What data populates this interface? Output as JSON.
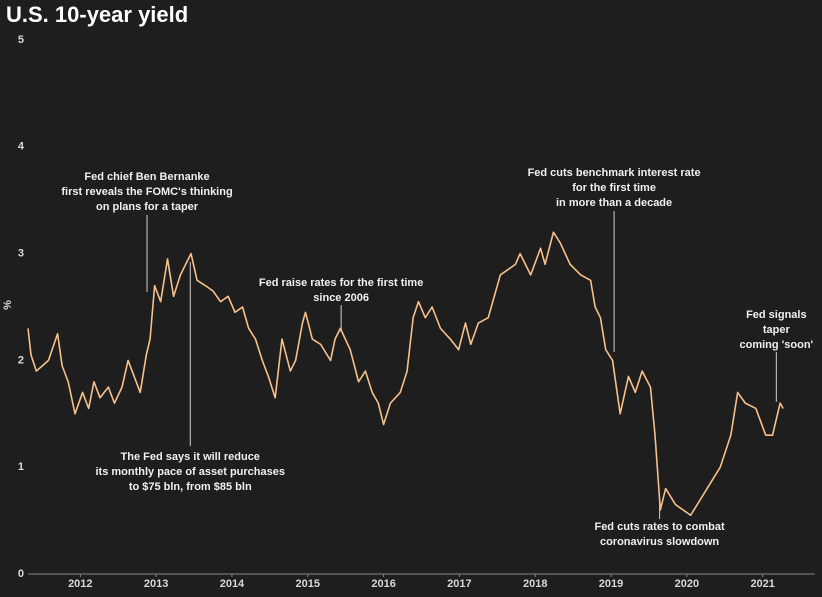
{
  "chart_data": {
    "type": "line",
    "title": "U.S. 10-year yield",
    "y_label": "%",
    "xlim": [
      2011.31,
      2021.69
    ],
    "xticks": [
      2012,
      2013,
      2014,
      2015,
      2016,
      2017,
      2018,
      2019,
      2020,
      2021
    ],
    "ylim": [
      0,
      5
    ],
    "yticks": [
      0,
      1,
      2,
      3,
      4,
      5
    ],
    "grid": false,
    "series": [
      {
        "name": "U.S. 10-year yield",
        "color": "#f7c08a",
        "x": [
          2011.31,
          2011.35,
          2011.42,
          2011.5,
          2011.58,
          2011.7,
          2011.76,
          2011.84,
          2011.93,
          2012.03,
          2012.11,
          2012.18,
          2012.26,
          2012.37,
          2012.45,
          2012.55,
          2012.63,
          2012.71,
          2012.79,
          2012.87,
          2012.92,
          2012.98,
          2013.06,
          2013.15,
          2013.23,
          2013.32,
          2013.39,
          2013.46,
          2013.54,
          2013.65,
          2013.75,
          2013.85,
          2013.95,
          2014.04,
          2014.14,
          2014.22,
          2014.31,
          2014.4,
          2014.48,
          2014.57,
          2014.66,
          2014.77,
          2014.84,
          2014.93,
          2014.97,
          2015.06,
          2015.17,
          2015.3,
          2015.36,
          2015.43,
          2015.56,
          2015.67,
          2015.76,
          2015.85,
          2015.93,
          2016.0,
          2016.09,
          2016.22,
          2016.31,
          2016.39,
          2016.46,
          2016.55,
          2016.64,
          2016.75,
          2016.88,
          2016.99,
          2017.08,
          2017.15,
          2017.25,
          2017.38,
          2017.54,
          2017.74,
          2017.8,
          2017.94,
          2018.07,
          2018.13,
          2018.24,
          2018.33,
          2018.46,
          2018.6,
          2018.73,
          2018.79,
          2018.86,
          2018.93,
          2019.02,
          2019.12,
          2019.23,
          2019.32,
          2019.41,
          2019.52,
          2019.58,
          2019.65,
          2019.72,
          2019.85,
          2020.05,
          2020.18,
          2020.31,
          2020.44,
          2020.58,
          2020.67,
          2020.77,
          2020.91,
          2021.04,
          2021.13,
          2021.23,
          2021.27
        ],
        "values": [
          2.3,
          2.05,
          1.9,
          1.95,
          2.0,
          2.25,
          1.95,
          1.8,
          1.5,
          1.7,
          1.55,
          1.8,
          1.65,
          1.75,
          1.6,
          1.75,
          2.0,
          1.85,
          1.7,
          2.05,
          2.2,
          2.7,
          2.55,
          2.95,
          2.6,
          2.8,
          2.9,
          3.0,
          2.75,
          2.7,
          2.65,
          2.55,
          2.6,
          2.45,
          2.5,
          2.3,
          2.2,
          2.0,
          1.85,
          1.65,
          2.2,
          1.9,
          2.0,
          2.35,
          2.45,
          2.2,
          2.15,
          2.0,
          2.2,
          2.3,
          2.1,
          1.8,
          1.9,
          1.7,
          1.6,
          1.4,
          1.6,
          1.7,
          1.9,
          2.4,
          2.55,
          2.4,
          2.5,
          2.3,
          2.2,
          2.1,
          2.35,
          2.15,
          2.35,
          2.4,
          2.8,
          2.9,
          3.0,
          2.8,
          3.05,
          2.9,
          3.2,
          3.1,
          2.9,
          2.8,
          2.75,
          2.5,
          2.4,
          2.1,
          2.0,
          1.5,
          1.85,
          1.7,
          1.9,
          1.75,
          1.3,
          0.6,
          0.8,
          0.65,
          0.55,
          0.7,
          0.85,
          1.0,
          1.3,
          1.7,
          1.6,
          1.55,
          1.3,
          1.3,
          1.6,
          1.55
        ]
      }
    ],
    "annotations": [
      {
        "x": 2012.88,
        "lines": [
          "Fed chief Ben Bernanke",
          "first reveals the FOMC's thinking",
          "on plans for a taper"
        ]
      },
      {
        "x": 2013.45,
        "lines": [
          "The Fed says it will reduce",
          "its monthly pace of asset purchases",
          "to $75 bln, from $85 bln"
        ]
      },
      {
        "x": 2015.44,
        "lines": [
          "Fed raise rates for the first time",
          "since 2006"
        ]
      },
      {
        "x": 2019.04,
        "lines": [
          "Fed cuts benchmark interest rate",
          "for the first time",
          "in more than a decade"
        ]
      },
      {
        "x": 2019.64,
        "lines": [
          "Fed cuts rates to combat",
          "coronavirus slowdown"
        ]
      },
      {
        "x": 2021.18,
        "lines": [
          "Fed signals",
          "taper",
          "coming 'soon'"
        ]
      }
    ]
  }
}
